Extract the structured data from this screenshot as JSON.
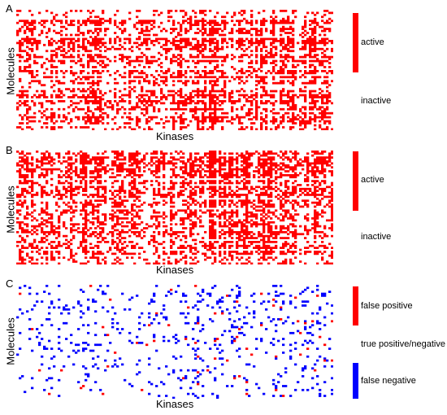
{
  "chart_data": [
    {
      "type": "heatmap",
      "panel": "A",
      "xlabel": "Kinases",
      "ylabel": "Molecules",
      "legend": [
        {
          "label": "active",
          "color": "#ff0000"
        },
        {
          "label": "inactive",
          "color": "#ffffff"
        }
      ],
      "density": 0.35
    },
    {
      "type": "heatmap",
      "panel": "B",
      "xlabel": "Kinases",
      "ylabel": "Molecules",
      "legend": [
        {
          "label": "active",
          "color": "#ff0000"
        },
        {
          "label": "inactive",
          "color": "#ffffff"
        }
      ],
      "density": 0.33
    },
    {
      "type": "heatmap",
      "panel": "C",
      "xlabel": "Kinases",
      "ylabel": "Molecules",
      "legend": [
        {
          "label": "false positive",
          "color": "#ff0000"
        },
        {
          "label": "true positive/negative",
          "color": "#ffffff"
        },
        {
          "label": "false negative",
          "color": "#0000ff"
        }
      ],
      "density": 0.07
    }
  ]
}
